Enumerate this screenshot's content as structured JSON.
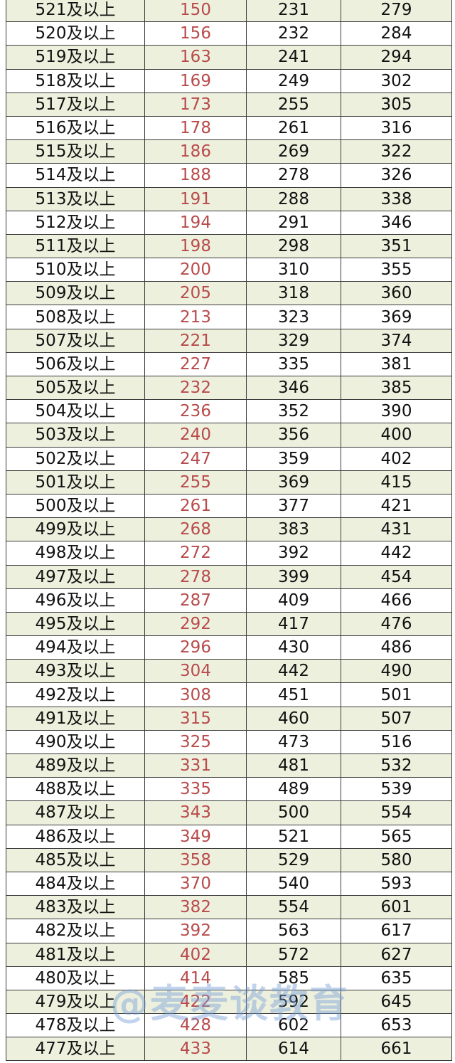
{
  "suffix": "及以上",
  "colors": {
    "row_alt": "#eef0de",
    "highlight_text": "#b84a4a",
    "border": "#3a3a3a"
  },
  "watermark": "@麦麦谈教育",
  "rows": [
    [
      "521",
      150,
      231,
      279
    ],
    [
      "520",
      156,
      232,
      284
    ],
    [
      "519",
      163,
      241,
      294
    ],
    [
      "518",
      169,
      249,
      302
    ],
    [
      "517",
      173,
      255,
      305
    ],
    [
      "516",
      178,
      261,
      316
    ],
    [
      "515",
      186,
      269,
      322
    ],
    [
      "514",
      188,
      278,
      326
    ],
    [
      "513",
      191,
      288,
      338
    ],
    [
      "512",
      194,
      291,
      346
    ],
    [
      "511",
      198,
      298,
      351
    ],
    [
      "510",
      200,
      310,
      355
    ],
    [
      "509",
      205,
      318,
      360
    ],
    [
      "508",
      213,
      323,
      369
    ],
    [
      "507",
      221,
      329,
      374
    ],
    [
      "506",
      227,
      335,
      381
    ],
    [
      "505",
      232,
      346,
      385
    ],
    [
      "504",
      236,
      352,
      390
    ],
    [
      "503",
      240,
      356,
      400
    ],
    [
      "502",
      247,
      359,
      402
    ],
    [
      "501",
      255,
      369,
      415
    ],
    [
      "500",
      261,
      377,
      421
    ],
    [
      "499",
      268,
      383,
      431
    ],
    [
      "498",
      272,
      392,
      442
    ],
    [
      "497",
      278,
      399,
      454
    ],
    [
      "496",
      287,
      409,
      466
    ],
    [
      "495",
      292,
      417,
      476
    ],
    [
      "494",
      296,
      430,
      486
    ],
    [
      "493",
      304,
      442,
      490
    ],
    [
      "492",
      308,
      451,
      501
    ],
    [
      "491",
      315,
      460,
      507
    ],
    [
      "490",
      325,
      473,
      516
    ],
    [
      "489",
      331,
      481,
      532
    ],
    [
      "488",
      335,
      489,
      539
    ],
    [
      "487",
      343,
      500,
      554
    ],
    [
      "486",
      349,
      521,
      565
    ],
    [
      "485",
      358,
      529,
      580
    ],
    [
      "484",
      370,
      540,
      593
    ],
    [
      "483",
      382,
      554,
      601
    ],
    [
      "482",
      392,
      563,
      617
    ],
    [
      "481",
      402,
      572,
      627
    ],
    [
      "480",
      414,
      585,
      635
    ],
    [
      "479",
      422,
      592,
      645
    ],
    [
      "478",
      428,
      602,
      653
    ],
    [
      "477",
      433,
      614,
      661
    ]
  ]
}
